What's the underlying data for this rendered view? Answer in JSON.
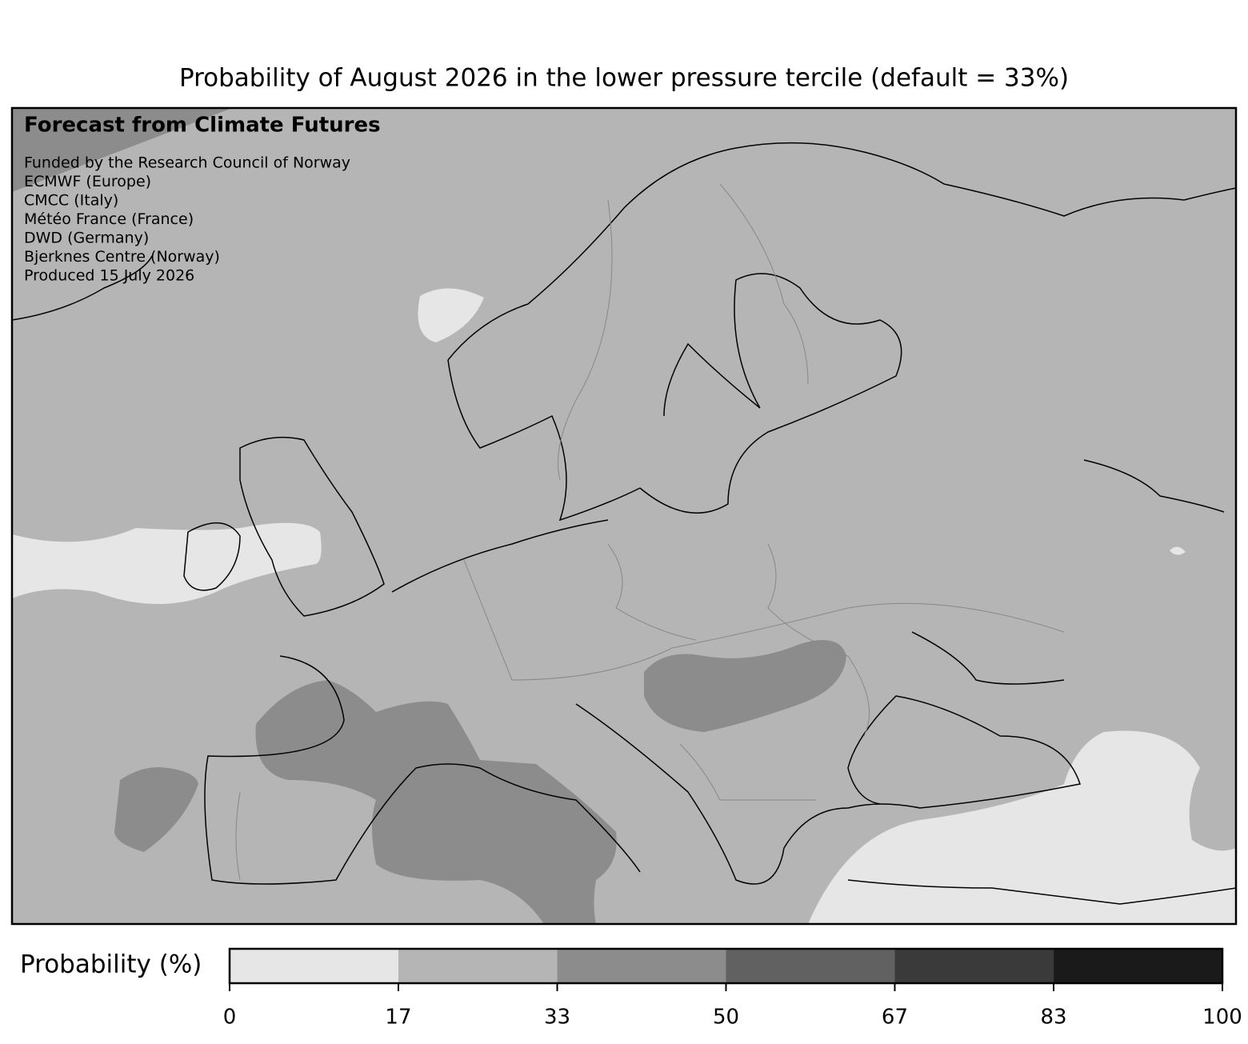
{
  "title": "Probability of August 2026 in the lower pressure tercile (default = 33%)",
  "annotation": {
    "heading": "Forecast from Climate Futures",
    "lines": [
      "Funded by the Research Council of Norway",
      "ECMWF (Europe)",
      "CMCC (Italy)",
      "Météo France (France)",
      "DWD (Germany)",
      "Bjerknes Centre (Norway)",
      "Produced 15 July 2026"
    ]
  },
  "colorbar": {
    "label": "Probability (%)",
    "lim": [
      0,
      100
    ],
    "ticks": [
      0,
      17,
      33,
      50,
      67,
      83,
      100
    ],
    "colors": [
      "#e6e6e6",
      "#b5b5b5",
      "#8c8c8c",
      "#616161",
      "#3a3a3a",
      "#1a1a1a"
    ]
  }
}
